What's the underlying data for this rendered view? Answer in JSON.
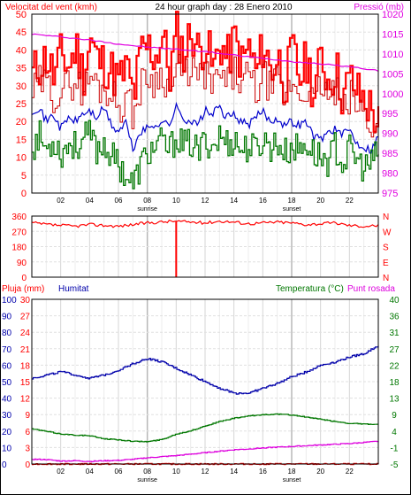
{
  "chart_data": [
    {
      "type": "line",
      "title": "24 hour graph day : 28 Enero 2010",
      "left_axis_label": "Velocitat del vent (kmh)",
      "right_axis_label": "Pressió (mb)",
      "x_ticks": [
        "02",
        "04",
        "06",
        "08",
        "10",
        "12",
        "14",
        "16",
        "18",
        "20",
        "22"
      ],
      "x_ticks_hours": [
        2,
        4,
        6,
        8,
        10,
        12,
        14,
        16,
        18,
        20,
        22
      ],
      "x_range": [
        0,
        24
      ],
      "sunrise_label": "sunrise",
      "sunrise_hour": 8.0,
      "sunset_label": "sunset",
      "sunset_hour": 18.0,
      "left_ylim": [
        0,
        50
      ],
      "left_ticks": [
        0,
        5,
        10,
        15,
        20,
        25,
        30,
        35,
        40,
        45,
        50
      ],
      "right_ylim": [
        975,
        1020
      ],
      "right_ticks": [
        975,
        980,
        985,
        990,
        995,
        1000,
        1005,
        1010,
        1015,
        1020
      ],
      "series": [
        {
          "name": "Velocitat del vent (kmh)",
          "axis": "left",
          "color": "#ff0000",
          "kind": "gust",
          "x": [
            0,
            0.5,
            1,
            1.5,
            2,
            2.5,
            3,
            3.5,
            4,
            4.5,
            5,
            5.5,
            6,
            6.5,
            7,
            7.5,
            8,
            8.5,
            9,
            9.5,
            10,
            10.5,
            11,
            11.5,
            12,
            12.5,
            13,
            13.5,
            14,
            14.5,
            15,
            15.5,
            16,
            16.5,
            17,
            17.5,
            18,
            18.5,
            19,
            19.5,
            20,
            20.5,
            21,
            21.5,
            22,
            22.5,
            23,
            23.5,
            24
          ],
          "y": [
            33,
            36,
            38,
            32,
            39,
            35,
            41,
            33,
            43,
            37,
            36,
            34,
            31,
            35,
            27,
            39,
            41,
            38,
            44,
            33,
            45,
            38,
            46,
            39,
            43,
            34,
            42,
            37,
            43,
            36,
            41,
            33,
            42,
            34,
            38,
            30,
            40,
            32,
            37,
            28,
            38,
            31,
            35,
            27,
            32,
            28,
            26,
            23,
            19
          ]
        },
        {
          "name": "wind mean",
          "axis": "left",
          "color": "#cc0000",
          "kind": "mean",
          "x": [
            0,
            0.5,
            1,
            1.5,
            2,
            2.5,
            3,
            3.5,
            4,
            4.5,
            5,
            5.5,
            6,
            6.5,
            7,
            7.5,
            8,
            8.5,
            9,
            9.5,
            10,
            10.5,
            11,
            11.5,
            12,
            12.5,
            13,
            13.5,
            14,
            14.5,
            15,
            15.5,
            16,
            16.5,
            17,
            17.5,
            18,
            18.5,
            19,
            19.5,
            20,
            20.5,
            21,
            21.5,
            22,
            22.5,
            23,
            23.5,
            24
          ],
          "y": [
            28,
            31,
            30,
            27,
            29,
            30,
            32,
            28,
            33,
            30,
            29,
            28,
            24,
            27,
            22,
            30,
            33,
            31,
            34,
            28,
            35,
            32,
            36,
            31,
            34,
            29,
            33,
            30,
            34,
            30,
            33,
            28,
            33,
            29,
            31,
            26,
            32,
            27,
            30,
            24,
            31,
            26,
            29,
            22,
            27,
            24,
            22,
            19,
            16
          ]
        },
        {
          "name": "wind average",
          "axis": "left",
          "color": "#0000cc",
          "x": [
            0,
            0.5,
            1,
            1.5,
            2,
            2.5,
            3,
            3.5,
            4,
            4.5,
            5,
            5.5,
            6,
            6.5,
            7,
            7.5,
            8,
            8.5,
            9,
            9.5,
            10,
            10.5,
            11,
            11.5,
            12,
            12.5,
            13,
            13.5,
            14,
            14.5,
            15,
            15.5,
            16,
            16.5,
            17,
            17.5,
            18,
            18.5,
            19,
            19.5,
            20,
            20.5,
            21,
            21.5,
            22,
            22.5,
            23,
            23.5,
            24
          ],
          "y": [
            23,
            24,
            20,
            22,
            18,
            21,
            20,
            22,
            23,
            21,
            24,
            19,
            17,
            20,
            12,
            17,
            18,
            19,
            20,
            19,
            24,
            21,
            20,
            19,
            23,
            22,
            24,
            21,
            22,
            20,
            19,
            21,
            23,
            20,
            21,
            19,
            20,
            19,
            20,
            16,
            15,
            17,
            18,
            16,
            18,
            14,
            13,
            12,
            16
          ]
        },
        {
          "name": "wind low",
          "axis": "left",
          "color": "#007700",
          "kind": "noisy",
          "x": [
            0,
            0.5,
            1,
            1.5,
            2,
            2.5,
            3,
            3.5,
            4,
            4.5,
            5,
            5.5,
            6,
            6.5,
            7,
            7.5,
            8,
            8.5,
            9,
            9.5,
            10,
            10.5,
            11,
            11.5,
            12,
            12.5,
            13,
            13.5,
            14,
            14.5,
            15,
            15.5,
            16,
            16.5,
            17,
            17.5,
            18,
            18.5,
            19,
            19.5,
            20,
            20.5,
            21,
            21.5,
            22,
            22.5,
            23,
            23.5,
            24
          ],
          "y": [
            13,
            16,
            12,
            15,
            11,
            14,
            13,
            15,
            16,
            12,
            14,
            10,
            8,
            5,
            2,
            8,
            11,
            13,
            14,
            12,
            16,
            13,
            14,
            11,
            15,
            13,
            16,
            14,
            15,
            12,
            13,
            12,
            15,
            13,
            14,
            11,
            13,
            12,
            14,
            11,
            10,
            9,
            13,
            8,
            12,
            9,
            7,
            8,
            12
          ]
        },
        {
          "name": "Pressió (mb)",
          "axis": "right",
          "color": "#e000e0",
          "x": [
            0,
            2,
            4,
            6,
            8,
            10,
            12,
            14,
            16,
            18,
            20,
            22,
            24
          ],
          "y": [
            1015.0,
            1014.3,
            1013.5,
            1012.5,
            1011.7,
            1011.2,
            1010.6,
            1009.7,
            1008.9,
            1008.1,
            1007.5,
            1006.8,
            1005.8
          ]
        }
      ]
    },
    {
      "type": "line",
      "left_ylim": [
        0,
        360
      ],
      "left_ticks": [
        0,
        90,
        180,
        270,
        360
      ],
      "right_tick_labels": [
        "N",
        "E",
        "S",
        "W",
        "N"
      ],
      "x_ticks": [
        "02",
        "04",
        "06",
        "08",
        "10",
        "12",
        "14",
        "16",
        "18",
        "20",
        "22"
      ],
      "x_ticks_hours": [
        2,
        4,
        6,
        8,
        10,
        12,
        14,
        16,
        18,
        20,
        22
      ],
      "x_range": [
        0,
        24
      ],
      "sunrise_hour": 8.0,
      "sunset_hour": 18.0,
      "series": [
        {
          "name": "wind direction",
          "color": "#ff0000",
          "x": [
            0,
            1,
            2,
            3,
            4,
            5,
            6,
            7,
            8,
            9,
            9.7,
            10,
            11,
            12,
            13,
            14,
            15,
            16,
            17,
            18,
            19,
            20,
            21,
            22,
            23,
            24
          ],
          "y": [
            320,
            310,
            305,
            300,
            310,
            305,
            300,
            310,
            320,
            325,
            330,
            0,
            325,
            320,
            330,
            325,
            315,
            320,
            325,
            320,
            310,
            315,
            320,
            305,
            300,
            305
          ]
        }
      ]
    },
    {
      "type": "line",
      "left_axis_label_1": "Pluja (mm)",
      "left_axis_label_2": "Humitat",
      "right_axis_label_1": "Temperatura (°C)",
      "right_axis_label_2": "Punt rosada",
      "x_ticks": [
        "02",
        "04",
        "06",
        "08",
        "10",
        "12",
        "14",
        "16",
        "18",
        "20",
        "22"
      ],
      "x_ticks_hours": [
        2,
        4,
        6,
        8,
        10,
        12,
        14,
        16,
        18,
        20,
        22
      ],
      "x_range": [
        0,
        24
      ],
      "sunrise_label": "sunrise",
      "sunrise_hour": 8.0,
      "sunset_label": "sunset",
      "sunset_hour": 18.0,
      "humidity_ylim": [
        0,
        100
      ],
      "humidity_ticks": [
        0,
        10,
        20,
        30,
        40,
        50,
        60,
        70,
        80,
        90,
        100
      ],
      "rain_ylim": [
        0,
        30
      ],
      "rain_ticks": [
        0,
        3,
        6,
        9,
        12,
        15,
        18,
        21,
        24,
        27,
        30
      ],
      "temp_ylim": [
        -5,
        40
      ],
      "temp_ticks": [
        -5,
        -1,
        4,
        9,
        13,
        18,
        22,
        27,
        31,
        36,
        40
      ],
      "series": [
        {
          "name": "Humitat",
          "axis": "humidity",
          "color": "#0000aa",
          "x": [
            0,
            1,
            2,
            3,
            4,
            5,
            6,
            7,
            8,
            9,
            10,
            11,
            12,
            13,
            14,
            15,
            16,
            17,
            18,
            19,
            20,
            21,
            22,
            23,
            24
          ],
          "y": [
            52,
            54,
            56,
            54,
            52,
            54,
            57,
            61,
            64,
            62,
            58,
            54,
            50,
            46,
            43,
            43,
            46,
            49,
            53,
            56,
            60,
            62,
            65,
            67,
            72
          ]
        },
        {
          "name": "Temperatura (°C)",
          "axis": "temp",
          "color": "#007700",
          "x": [
            0,
            1,
            2,
            3,
            4,
            5,
            6,
            7,
            8,
            9,
            10,
            11,
            12,
            13,
            14,
            15,
            16,
            17,
            18,
            19,
            20,
            21,
            22,
            23,
            24
          ],
          "y": [
            4.6,
            3.9,
            3.2,
            2.9,
            2.7,
            1.9,
            1.6,
            1.2,
            1.1,
            1.7,
            3.2,
            4.1,
            5.4,
            6.6,
            7.5,
            8.1,
            8.5,
            8.6,
            8.4,
            7.8,
            7.2,
            6.6,
            6.1,
            5.9,
            5.8
          ]
        },
        {
          "name": "Punt rosada",
          "axis": "temp",
          "color": "#dd00dd",
          "x": [
            0,
            1,
            2,
            3,
            4,
            5,
            6,
            7,
            8,
            9,
            10,
            11,
            12,
            13,
            14,
            15,
            16,
            17,
            18,
            19,
            20,
            21,
            22,
            23,
            24
          ],
          "y": [
            -3.7,
            -3.8,
            -4.2,
            -4.1,
            -4.3,
            -4.1,
            -4.0,
            -3.7,
            -3.3,
            -3.0,
            -2.7,
            -2.3,
            -1.9,
            -1.5,
            -1.1,
            -0.9,
            -0.6,
            -0.4,
            -0.2,
            0.0,
            0.2,
            0.4,
            0.6,
            0.9,
            1.2
          ]
        },
        {
          "name": "Pluja (mm)",
          "axis": "rain",
          "color": "#ff0000",
          "x": [
            0,
            24
          ],
          "y": [
            0,
            0
          ]
        }
      ]
    }
  ],
  "colors": {
    "frame": "#000000",
    "grid": "#d0d0d0",
    "left_axis_red": "#ff0000",
    "left_axis_blue": "#0000cc",
    "right_axis_magenta": "#e000e0",
    "right_axis_green": "#007700"
  }
}
